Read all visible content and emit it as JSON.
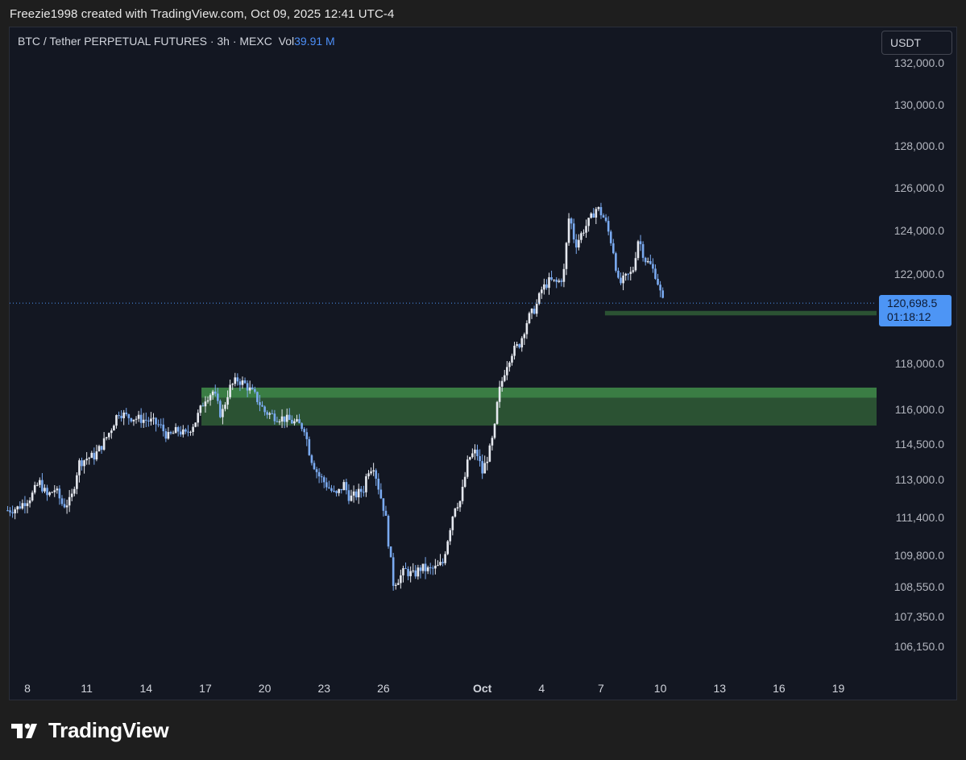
{
  "caption": "Freezie1998 created with TradingView.com, Oct 09, 2025 12:41 UTC-4",
  "symbol": {
    "title": "BTC / Tether PERPETUAL FUTURES · 3h · MEXC",
    "vol_label": "Vol",
    "vol_value": "39.91 M"
  },
  "currency_button": "USDT",
  "price_tag": {
    "price": "120,698.5",
    "countdown": "01:18:12"
  },
  "footer_brand": "TradingView",
  "colors": {
    "background": "#131722",
    "candle": "#7aaaf0",
    "zone_light": "#3a7d44",
    "zone_dark": "#2b5233",
    "price_tag": "#4d95f5"
  },
  "chart_data": {
    "type": "candlestick",
    "interval": "3h",
    "y_axis_ticks": [
      {
        "label": "132,000.0",
        "value": 132000
      },
      {
        "label": "130,000.0",
        "value": 130000
      },
      {
        "label": "128,000.0",
        "value": 128000
      },
      {
        "label": "126,000.0",
        "value": 126000
      },
      {
        "label": "124,000.0",
        "value": 124000
      },
      {
        "label": "122,000.0",
        "value": 122000
      },
      {
        "label": "118,000.0",
        "value": 118000
      },
      {
        "label": "116,000.0",
        "value": 116000
      },
      {
        "label": "114,500.0",
        "value": 114500
      },
      {
        "label": "113,000.0",
        "value": 113000
      },
      {
        "label": "111,400.0",
        "value": 111400
      },
      {
        "label": "109,800.0",
        "value": 109800
      },
      {
        "label": "108,550.0",
        "value": 108550
      },
      {
        "label": "107,350.0",
        "value": 107350
      },
      {
        "label": "106,150.0",
        "value": 106150
      }
    ],
    "x_axis_ticks": [
      {
        "label": "8",
        "day": 0
      },
      {
        "label": "11",
        "day": 3
      },
      {
        "label": "14",
        "day": 6
      },
      {
        "label": "17",
        "day": 9
      },
      {
        "label": "20",
        "day": 12
      },
      {
        "label": "23",
        "day": 15
      },
      {
        "label": "26",
        "day": 18
      },
      {
        "label": "Oct",
        "day": 23,
        "bold": true
      },
      {
        "label": "4",
        "day": 26
      },
      {
        "label": "7",
        "day": 29
      },
      {
        "label": "10",
        "day": 32
      },
      {
        "label": "13",
        "day": 35
      },
      {
        "label": "16",
        "day": 38
      },
      {
        "label": "19",
        "day": 41
      }
    ],
    "last_price": 120698.5,
    "zones": [
      {
        "from_day": 8.8,
        "top": 116950,
        "bottom": 116500,
        "shade": "light"
      },
      {
        "from_day": 8.8,
        "top": 116500,
        "bottom": 115300,
        "shade": "dark"
      },
      {
        "from_day": 29.2,
        "top": 120350,
        "bottom": 120150,
        "shade": "dark"
      }
    ],
    "price_path": [
      [
        -1.0,
        111700
      ],
      [
        -0.5,
        111800
      ],
      [
        0.2,
        112300
      ],
      [
        0.6,
        112900
      ],
      [
        1.0,
        112300
      ],
      [
        1.4,
        112600
      ],
      [
        1.8,
        111900
      ],
      [
        2.2,
        112100
      ],
      [
        2.6,
        113700
      ],
      [
        3.0,
        113900
      ],
      [
        3.4,
        114000
      ],
      [
        3.8,
        114500
      ],
      [
        4.2,
        115100
      ],
      [
        4.6,
        115900
      ],
      [
        5.0,
        115700
      ],
      [
        5.6,
        115600
      ],
      [
        6.2,
        115500
      ],
      [
        6.7,
        115300
      ],
      [
        7.1,
        114800
      ],
      [
        7.6,
        115100
      ],
      [
        8.0,
        114900
      ],
      [
        8.5,
        115500
      ],
      [
        9.0,
        116500
      ],
      [
        9.4,
        116800
      ],
      [
        9.8,
        115700
      ],
      [
        10.2,
        116900
      ],
      [
        10.6,
        117300
      ],
      [
        11.0,
        117100
      ],
      [
        11.5,
        116600
      ],
      [
        12.0,
        115900
      ],
      [
        12.5,
        115700
      ],
      [
        13.0,
        115600
      ],
      [
        13.6,
        115400
      ],
      [
        14.0,
        115200
      ],
      [
        14.3,
        114000
      ],
      [
        14.7,
        113200
      ],
      [
        15.2,
        112700
      ],
      [
        15.6,
        112300
      ],
      [
        16.0,
        112800
      ],
      [
        16.3,
        112200
      ],
      [
        16.7,
        112400
      ],
      [
        17.0,
        112600
      ],
      [
        17.2,
        113400
      ],
      [
        17.5,
        113600
      ],
      [
        17.8,
        112500
      ],
      [
        18.1,
        111500
      ],
      [
        18.3,
        110000
      ],
      [
        18.5,
        108700
      ],
      [
        18.8,
        108900
      ],
      [
        19.1,
        109200
      ],
      [
        19.5,
        109000
      ],
      [
        19.9,
        109300
      ],
      [
        20.3,
        109200
      ],
      [
        20.7,
        109300
      ],
      [
        21.0,
        109500
      ],
      [
        21.3,
        110700
      ],
      [
        21.6,
        111900
      ],
      [
        21.9,
        112100
      ],
      [
        22.3,
        113900
      ],
      [
        22.7,
        114200
      ],
      [
        23.0,
        113300
      ],
      [
        23.4,
        114300
      ],
      [
        23.6,
        115000
      ],
      [
        23.8,
        116600
      ],
      [
        24.2,
        117900
      ],
      [
        24.5,
        118500
      ],
      [
        24.9,
        118900
      ],
      [
        25.3,
        120000
      ],
      [
        25.7,
        120500
      ],
      [
        26.0,
        121300
      ],
      [
        26.4,
        121700
      ],
      [
        26.8,
        121600
      ],
      [
        27.1,
        121900
      ],
      [
        27.4,
        124800
      ],
      [
        27.7,
        123300
      ],
      [
        28.1,
        124000
      ],
      [
        28.5,
        124600
      ],
      [
        28.8,
        125100
      ],
      [
        29.2,
        124500
      ],
      [
        29.6,
        123200
      ],
      [
        29.9,
        121500
      ],
      [
        30.2,
        121800
      ],
      [
        30.6,
        122100
      ],
      [
        30.9,
        123700
      ],
      [
        31.2,
        122700
      ],
      [
        31.5,
        122400
      ],
      [
        31.8,
        121900
      ],
      [
        32.1,
        120800
      ],
      [
        32.2,
        120700
      ]
    ]
  }
}
